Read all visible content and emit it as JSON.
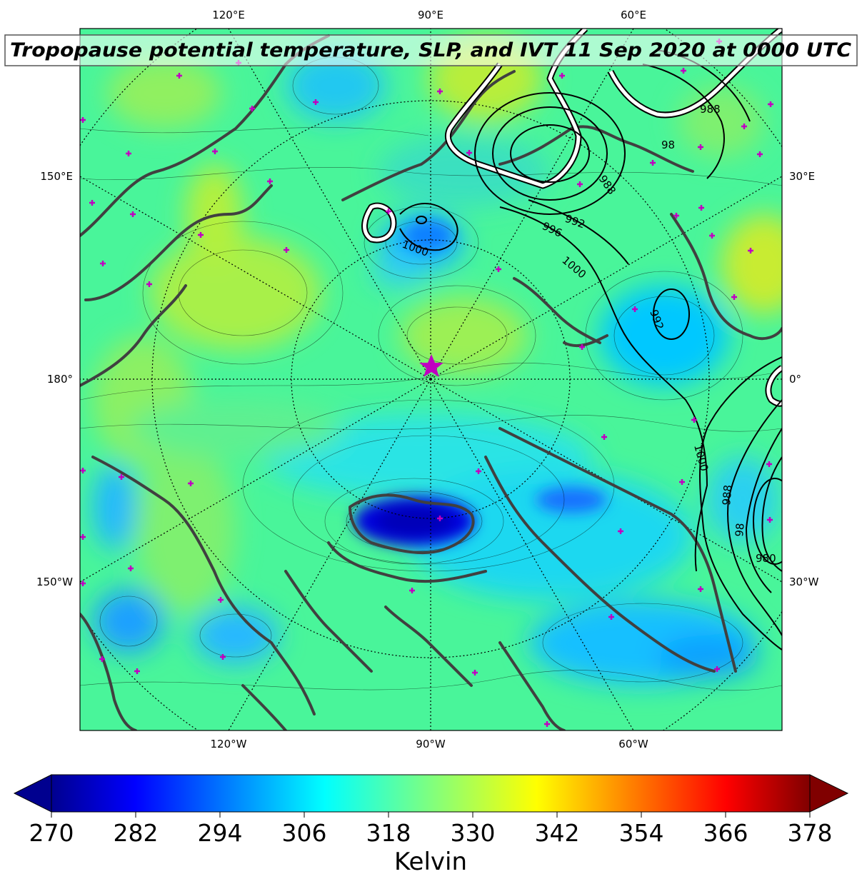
{
  "title": "Tropopause potential temperature, SLP, and IVT 11 Sep 2020 at 0000 UTC",
  "map": {
    "longitude_labels": {
      "top": [
        "120°E",
        "90°E",
        "60°E"
      ],
      "bottom": [
        "120°W",
        "90°W",
        "60°W"
      ],
      "left": [
        "150°E",
        "180°",
        "150°W"
      ],
      "right": [
        "30°E",
        "0°",
        "30°W"
      ]
    },
    "slp_contour_labels": [
      "988",
      "98",
      "988",
      "992",
      "996",
      "1000",
      "1000",
      "992",
      "1000",
      "988",
      "98",
      "980"
    ],
    "colors": {
      "coastline": "#404040",
      "slp_contour": "#000000",
      "ivt_contour": "#ffffff",
      "marker": "#c000c0"
    }
  },
  "colorbar": {
    "colormap": "jet",
    "min": 270,
    "max": 378,
    "ticks": [
      "270",
      "282",
      "294",
      "306",
      "318",
      "330",
      "342",
      "354",
      "366",
      "378"
    ],
    "label": "Kelvin",
    "extend": "both"
  }
}
